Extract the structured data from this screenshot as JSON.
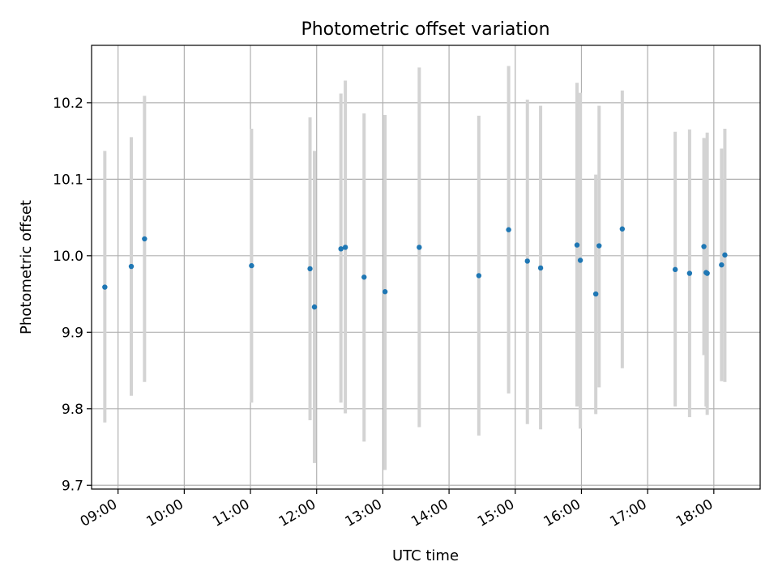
{
  "chart_data": {
    "type": "scatter",
    "title": "Photometric offset variation",
    "xlabel": "UTC time",
    "ylabel": "Photometric offset",
    "xlim": [
      "08:36",
      "18:42"
    ],
    "ylim": [
      9.695,
      10.275
    ],
    "x_ticks": [
      "09:00",
      "10:00",
      "11:00",
      "12:00",
      "13:00",
      "14:00",
      "15:00",
      "16:00",
      "17:00",
      "18:00"
    ],
    "y_ticks": [
      "9.7",
      "9.8",
      "9.9",
      "10.0",
      "10.1",
      "10.2"
    ],
    "grid": true,
    "colors": {
      "point": "#1f77b4",
      "errorbar": "#d3d3d3",
      "grid": "#b0b0b0",
      "axes": "#000000"
    },
    "series": [
      {
        "points": [
          {
            "x": "08:48",
            "y": 9.959,
            "ymin": 9.782,
            "ymax": 10.137
          },
          {
            "x": "09:12",
            "y": 9.986,
            "ymin": 9.817,
            "ymax": 10.155
          },
          {
            "x": "09:24",
            "y": 10.022,
            "ymin": 9.835,
            "ymax": 10.209
          },
          {
            "x": "11:01",
            "y": 9.987,
            "ymin": 9.808,
            "ymax": 10.166
          },
          {
            "x": "11:54",
            "y": 9.983,
            "ymin": 9.785,
            "ymax": 10.181
          },
          {
            "x": "11:58",
            "y": 9.933,
            "ymin": 9.729,
            "ymax": 10.137
          },
          {
            "x": "12:22",
            "y": 10.009,
            "ymin": 9.808,
            "ymax": 10.212
          },
          {
            "x": "12:26",
            "y": 10.011,
            "ymin": 9.794,
            "ymax": 10.229
          },
          {
            "x": "12:43",
            "y": 9.972,
            "ymin": 9.757,
            "ymax": 10.186
          },
          {
            "x": "13:02",
            "y": 9.953,
            "ymin": 9.72,
            "ymax": 10.184
          },
          {
            "x": "13:33",
            "y": 10.011,
            "ymin": 9.776,
            "ymax": 10.246
          },
          {
            "x": "14:27",
            "y": 9.974,
            "ymin": 9.765,
            "ymax": 10.183
          },
          {
            "x": "14:54",
            "y": 10.034,
            "ymin": 9.82,
            "ymax": 10.248
          },
          {
            "x": "15:11",
            "y": 9.993,
            "ymin": 9.78,
            "ymax": 10.204
          },
          {
            "x": "15:23",
            "y": 9.984,
            "ymin": 9.773,
            "ymax": 10.196
          },
          {
            "x": "15:56",
            "y": 10.014,
            "ymin": 9.803,
            "ymax": 10.226
          },
          {
            "x": "15:59",
            "y": 9.994,
            "ymin": 9.774,
            "ymax": 10.213
          },
          {
            "x": "16:13",
            "y": 9.95,
            "ymin": 9.793,
            "ymax": 10.106
          },
          {
            "x": "16:16",
            "y": 10.013,
            "ymin": 9.828,
            "ymax": 10.196
          },
          {
            "x": "16:37",
            "y": 10.035,
            "ymin": 9.853,
            "ymax": 10.216
          },
          {
            "x": "17:25",
            "y": 9.982,
            "ymin": 9.803,
            "ymax": 10.162
          },
          {
            "x": "17:38",
            "y": 9.977,
            "ymin": 9.789,
            "ymax": 10.165
          },
          {
            "x": "17:51",
            "y": 10.012,
            "ymin": 9.87,
            "ymax": 10.154
          },
          {
            "x": "17:53",
            "y": 9.978,
            "ymin": 9.803,
            "ymax": 10.153
          },
          {
            "x": "17:54",
            "y": 9.977,
            "ymin": 9.792,
            "ymax": 10.161
          },
          {
            "x": "18:07",
            "y": 9.988,
            "ymin": 9.836,
            "ymax": 10.14
          },
          {
            "x": "18:10",
            "y": 10.001,
            "ymin": 9.835,
            "ymax": 10.166
          }
        ]
      }
    ]
  }
}
